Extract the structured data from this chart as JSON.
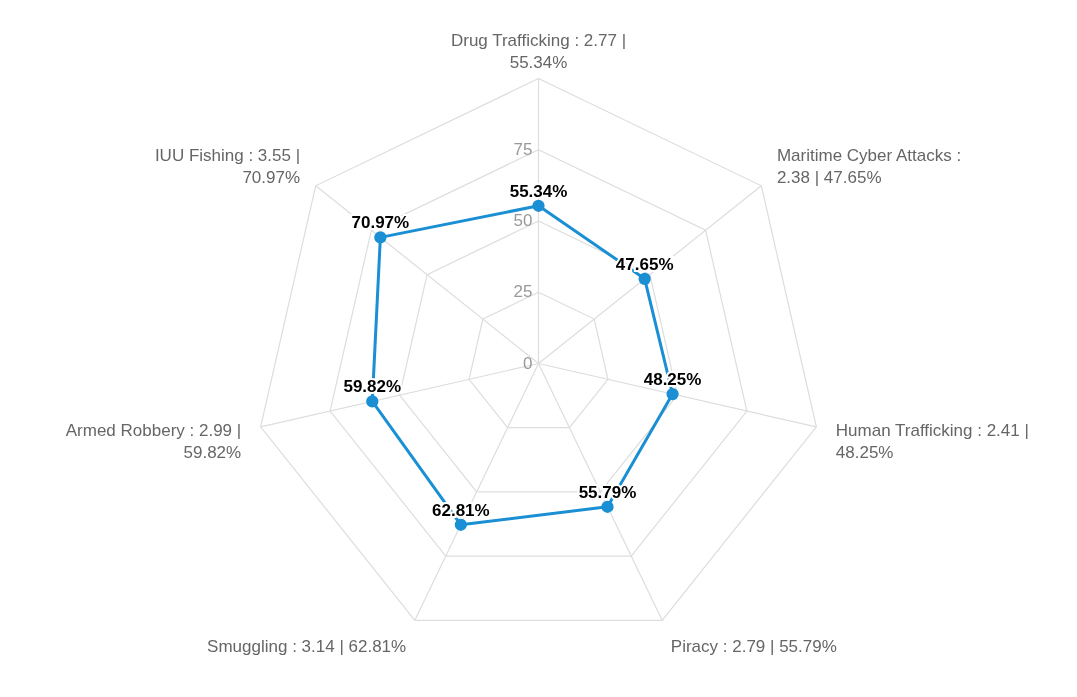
{
  "chart_data": {
    "type": "radar",
    "categories": [
      "Drug Trafficking : 2.77 | 55.34%",
      "Maritime Cyber Attacks : 2.38 | 47.65%",
      "Human Trafficking : 2.41 | 48.25%",
      "Piracy : 2.79 | 55.79%",
      "Smuggling : 3.14 | 62.81%",
      "Armed Robbery : 2.99 | 59.82%",
      "IUU Fishing : 3.55 | 70.97%"
    ],
    "series": [
      {
        "color": "#1a8fd4",
        "values": [
          55.34,
          47.65,
          48.25,
          55.79,
          62.81,
          59.82,
          70.97
        ],
        "value_labels": [
          "55.34%",
          "47.65%",
          "48.25%",
          "55.79%",
          "62.81%",
          "59.82%",
          "70.97%"
        ]
      }
    ],
    "ylim": [
      0,
      100
    ],
    "yticks": [
      0,
      25,
      50,
      75
    ],
    "grid": true,
    "marker": "circle",
    "line_style": "solid"
  }
}
